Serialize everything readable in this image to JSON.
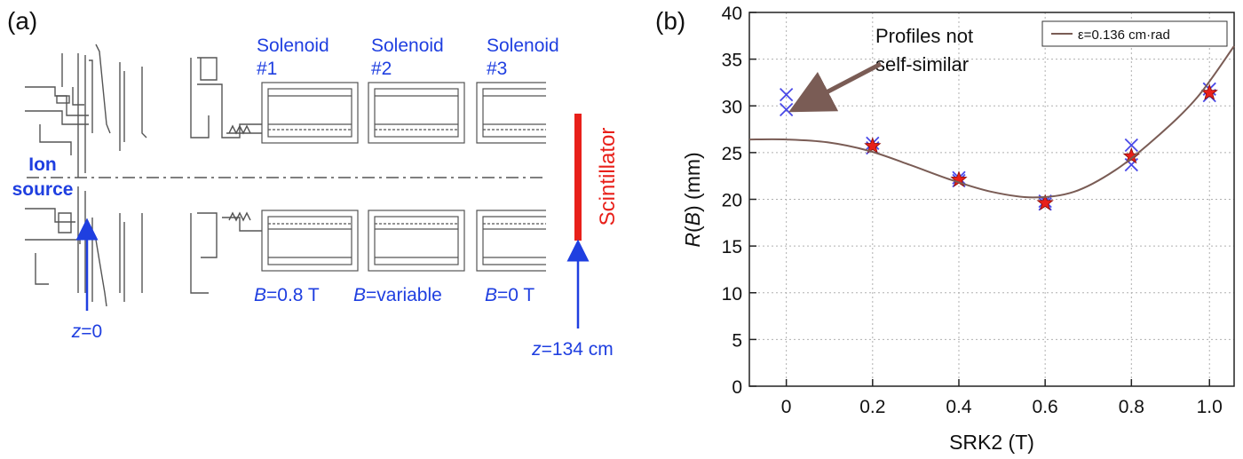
{
  "panel_a": {
    "label": "(a)",
    "solenoids": [
      {
        "name_line1": "Solenoid",
        "name_line2": "#1",
        "field_var": "B",
        "field_value": "=0.8 T"
      },
      {
        "name_line1": "Solenoid",
        "name_line2": "#2",
        "field_var": "B",
        "field_value": "=variable"
      },
      {
        "name_line1": "Solenoid",
        "name_line2": "#3",
        "field_var": "B",
        "field_value": "=0 T"
      }
    ],
    "ion_source_line1": "Ion",
    "ion_source_line2": "source",
    "z_start_var": "z",
    "z_start_value": "=0",
    "z_end_var": "z",
    "z_end_value": "=134 cm",
    "scintillator": "Scintillator",
    "colors": {
      "annotation": "#1f3fe0",
      "scintillator": "#e8201a",
      "drawing": "#555555"
    }
  },
  "panel_b": {
    "label": "(b)",
    "annotation_line1": "Profiles not",
    "annotation_line2": "self-similar",
    "legend_label": "ε=0.136 cm·rad"
  },
  "chart_data": {
    "type": "scatter",
    "xlabel": "SRK2 (T)",
    "ylabel_italic": "R",
    "ylabel_var": "B",
    "ylabel_prefix": "(",
    "ylabel_suffix": ") (mm)",
    "xlim": [
      -0.09,
      1.09
    ],
    "ylim": [
      0,
      40
    ],
    "x_ticks": [
      "0",
      "0.2",
      "0.4",
      "0.6",
      "0.8",
      "1.0"
    ],
    "x_tick_values": [
      0,
      0.21,
      0.42,
      0.63,
      0.84,
      1.03
    ],
    "y_ticks": [
      "0",
      "5",
      "10",
      "15",
      "20",
      "25",
      "30",
      "35",
      "40"
    ],
    "grid": true,
    "legend_position": "top-right",
    "series": [
      {
        "marker": "x",
        "color": "#4a4ae8",
        "points": [
          [
            0,
            31.2
          ],
          [
            0,
            29.6
          ],
          [
            0.21,
            26.0
          ],
          [
            0.21,
            25.5
          ],
          [
            0.42,
            22.3
          ],
          [
            0.42,
            22.0
          ],
          [
            0.63,
            19.8
          ],
          [
            0.63,
            19.5
          ],
          [
            0.84,
            25.8
          ],
          [
            0.84,
            23.7
          ],
          [
            1.03,
            31.8
          ],
          [
            1.03,
            31.1
          ]
        ]
      },
      {
        "marker": "star",
        "color": "#e8201a",
        "points": [
          [
            0.21,
            25.7
          ],
          [
            0.42,
            22.1
          ],
          [
            0.63,
            19.6
          ],
          [
            0.84,
            24.6
          ],
          [
            1.03,
            31.4
          ]
        ]
      },
      {
        "marker": "line",
        "color": "#7a5c55",
        "points": [
          [
            -0.09,
            26.4
          ],
          [
            0,
            26.4
          ],
          [
            0.1,
            26.1
          ],
          [
            0.2,
            25.2
          ],
          [
            0.3,
            23.7
          ],
          [
            0.4,
            22.1
          ],
          [
            0.5,
            20.8
          ],
          [
            0.6,
            20.2
          ],
          [
            0.7,
            20.8
          ],
          [
            0.8,
            23.1
          ],
          [
            0.9,
            26.6
          ],
          [
            1.0,
            30.9
          ],
          [
            1.09,
            36.4
          ]
        ]
      }
    ]
  }
}
